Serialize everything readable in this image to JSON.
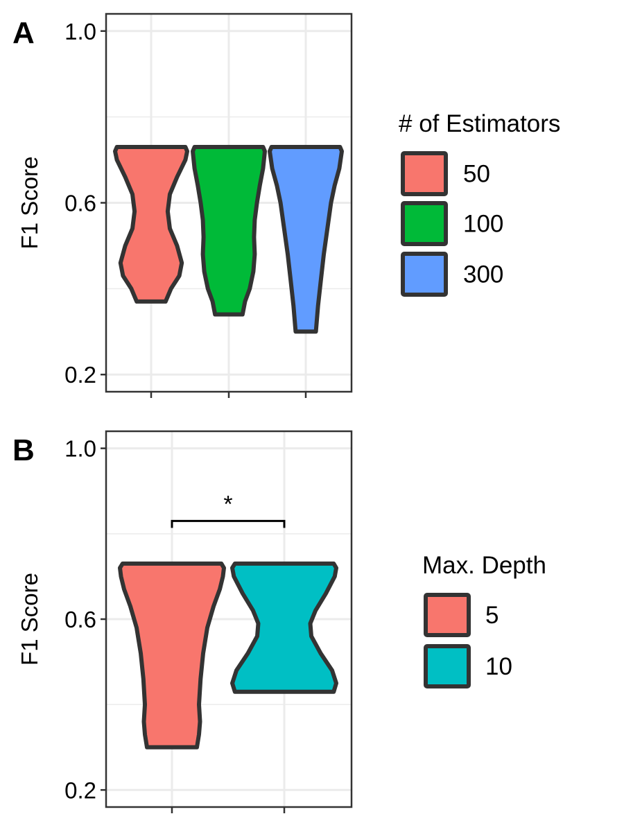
{
  "chart_data": [
    {
      "panel": "A",
      "type": "violin",
      "ylabel": "F1 Score",
      "ylim": [
        0.16,
        1.04
      ],
      "yticks": [
        "0.2",
        "0.6",
        "1.0"
      ],
      "grid": true,
      "legend": {
        "title": "# of Estimators",
        "position": "right",
        "items": [
          {
            "label": "50",
            "color": "#F8766D"
          },
          {
            "label": "100",
            "color": "#00BA38"
          },
          {
            "label": "300",
            "color": "#619CFF"
          }
        ]
      },
      "series": [
        {
          "label": "50",
          "color": "#F8766D",
          "min": 0.37,
          "max": 0.73,
          "profile": [
            [
              0.37,
              0.4
            ],
            [
              0.4,
              0.55
            ],
            [
              0.43,
              0.78
            ],
            [
              0.46,
              0.85
            ],
            [
              0.5,
              0.72
            ],
            [
              0.54,
              0.52
            ],
            [
              0.58,
              0.46
            ],
            [
              0.62,
              0.52
            ],
            [
              0.66,
              0.72
            ],
            [
              0.7,
              0.95
            ],
            [
              0.72,
              1.0
            ],
            [
              0.73,
              0.95
            ]
          ]
        },
        {
          "label": "100",
          "color": "#00BA38",
          "min": 0.34,
          "max": 0.73,
          "profile": [
            [
              0.34,
              0.38
            ],
            [
              0.37,
              0.45
            ],
            [
              0.4,
              0.58
            ],
            [
              0.44,
              0.68
            ],
            [
              0.48,
              0.72
            ],
            [
              0.52,
              0.7
            ],
            [
              0.56,
              0.72
            ],
            [
              0.6,
              0.78
            ],
            [
              0.64,
              0.86
            ],
            [
              0.68,
              0.95
            ],
            [
              0.72,
              1.0
            ],
            [
              0.73,
              0.95
            ]
          ]
        },
        {
          "label": "300",
          "color": "#619CFF",
          "min": 0.3,
          "max": 0.73,
          "profile": [
            [
              0.3,
              0.28
            ],
            [
              0.36,
              0.34
            ],
            [
              0.42,
              0.42
            ],
            [
              0.48,
              0.5
            ],
            [
              0.54,
              0.6
            ],
            [
              0.6,
              0.7
            ],
            [
              0.64,
              0.8
            ],
            [
              0.68,
              0.93
            ],
            [
              0.72,
              1.0
            ],
            [
              0.73,
              0.95
            ]
          ]
        }
      ]
    },
    {
      "panel": "B",
      "type": "violin",
      "ylabel": "F1 Score",
      "ylim": [
        0.16,
        1.04
      ],
      "yticks": [
        "0.2",
        "0.6",
        "1.0"
      ],
      "grid": true,
      "annotation": {
        "text": "*",
        "between": [
          "5",
          "10"
        ],
        "y": 0.83
      },
      "legend": {
        "title": "Max. Depth",
        "position": "right",
        "items": [
          {
            "label": "5",
            "color": "#F8766D"
          },
          {
            "label": "10",
            "color": "#00BFC4"
          }
        ]
      },
      "series": [
        {
          "label": "5",
          "color": "#F8766D",
          "min": 0.3,
          "max": 0.73,
          "profile": [
            [
              0.3,
              0.48
            ],
            [
              0.33,
              0.52
            ],
            [
              0.36,
              0.54
            ],
            [
              0.4,
              0.52
            ],
            [
              0.46,
              0.55
            ],
            [
              0.52,
              0.6
            ],
            [
              0.58,
              0.68
            ],
            [
              0.63,
              0.8
            ],
            [
              0.67,
              0.92
            ],
            [
              0.7,
              0.98
            ],
            [
              0.72,
              1.0
            ],
            [
              0.73,
              0.95
            ]
          ]
        },
        {
          "label": "10",
          "color": "#00BFC4",
          "min": 0.43,
          "max": 0.73,
          "profile": [
            [
              0.43,
              0.95
            ],
            [
              0.45,
              1.0
            ],
            [
              0.48,
              0.92
            ],
            [
              0.52,
              0.7
            ],
            [
              0.56,
              0.52
            ],
            [
              0.59,
              0.5
            ],
            [
              0.62,
              0.6
            ],
            [
              0.66,
              0.8
            ],
            [
              0.7,
              0.97
            ],
            [
              0.72,
              1.0
            ],
            [
              0.73,
              0.95
            ]
          ]
        }
      ]
    }
  ]
}
